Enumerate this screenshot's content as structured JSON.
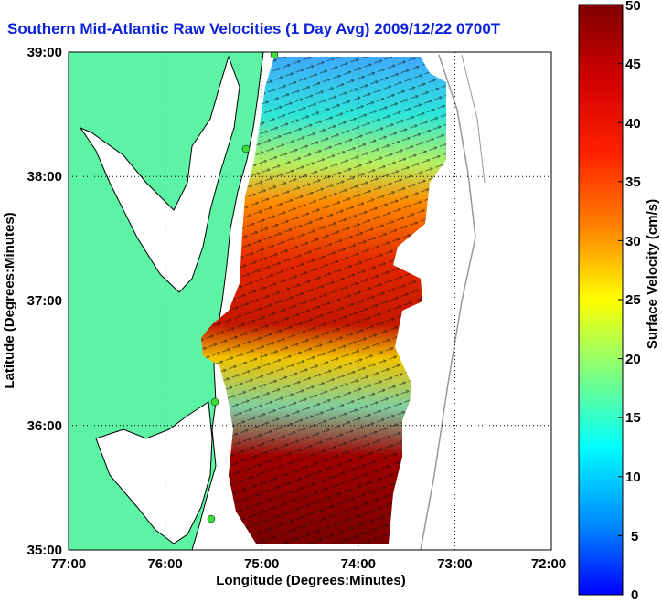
{
  "title": "Southern Mid-Atlantic Raw Velocities (1 Day Avg) 2009/12/22 0700",
  "title_suffix": "T",
  "map": {
    "xlabel": "Longitude (Degrees:Minutes)",
    "ylabel": "Latitude (Degrees:Minutes)",
    "x_ticks": [
      "77:00",
      "76:00",
      "75:00",
      "74:00",
      "73:00",
      "72:00"
    ],
    "y_ticks": [
      "39:00",
      "38:00",
      "37:00",
      "36:00",
      "35:00"
    ],
    "xlim": [
      -77,
      -72
    ],
    "ylim": [
      35,
      39
    ],
    "grid": "dotted",
    "land_color": "#5cf4a4",
    "sea_color": "#ffffff"
  },
  "colorbar": {
    "label": "Surface Velocity (cm/s)",
    "ticks": [
      "0",
      "5",
      "10",
      "15",
      "20",
      "25",
      "30",
      "35",
      "40",
      "45",
      "50"
    ],
    "min": 0,
    "max": 50,
    "colormap": "jet"
  },
  "colors": {
    "title": "#0b22d9",
    "land": "#5cf4a4",
    "station": "#3ddc3d",
    "coast": "#000000",
    "bathymetry": "#999999"
  }
}
